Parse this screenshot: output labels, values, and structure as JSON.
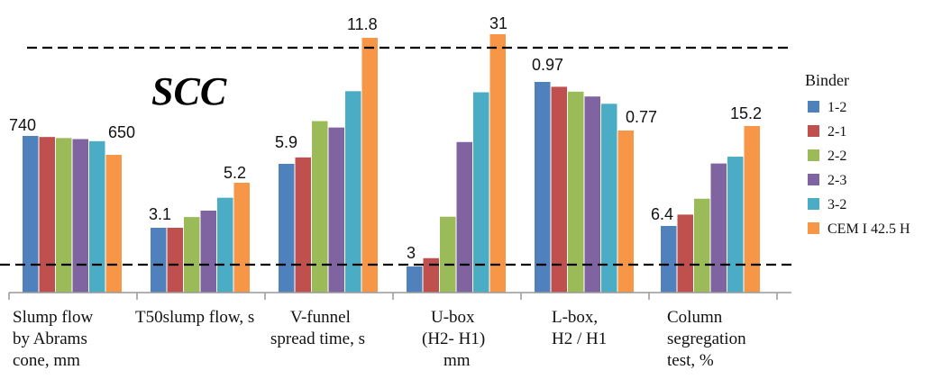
{
  "chart_data": {
    "type": "bar",
    "title": "SCC",
    "legend_title": "Binder",
    "legend_position": "right",
    "categories": [
      [
        "Slump flow",
        "by Abrams",
        "cone, mm"
      ],
      [
        "T50slump flow, s"
      ],
      [
        "V-funnel",
        "spread time, s"
      ],
      [
        "U-box",
        "(H2- H1)",
        "mm"
      ],
      [
        "L-box,",
        "H2 / H1"
      ],
      [
        "Column",
        "segregation",
        "test, %"
      ]
    ],
    "series": [
      {
        "name": "1-2",
        "color": "#4f81bd",
        "values": [
          740,
          3.1,
          5.9,
          3,
          0.97,
          6.4
        ]
      },
      {
        "name": "2-1",
        "color": "#c0504d",
        "values": [
          735,
          3.1,
          6.2,
          4,
          0.95,
          7.4
        ]
      },
      {
        "name": "2-2",
        "color": "#9bbb59",
        "values": [
          730,
          3.6,
          7.9,
          9,
          0.93,
          8.8
        ]
      },
      {
        "name": "2-3",
        "color": "#8064a2",
        "values": [
          725,
          3.9,
          7.6,
          18,
          0.91,
          11.9
        ]
      },
      {
        "name": "3-2",
        "color": "#4bacc6",
        "values": [
          715,
          4.5,
          9.3,
          24,
          0.88,
          12.5
        ]
      },
      {
        "name": "CEM I 42.5 H",
        "color": "#f79646",
        "values": [
          650,
          5.2,
          11.8,
          31,
          0.77,
          15.2
        ]
      }
    ],
    "data_labels": [
      "740",
      "650",
      "3.1",
      "5.2",
      "5.9",
      "11.8",
      "3",
      "31",
      "0.97",
      "0.77",
      "6.4",
      "15.2"
    ],
    "axis": {
      "y_visible": false,
      "grid": false
    },
    "reference_lines": [
      "upper dashed line",
      "lower dashed line"
    ]
  }
}
